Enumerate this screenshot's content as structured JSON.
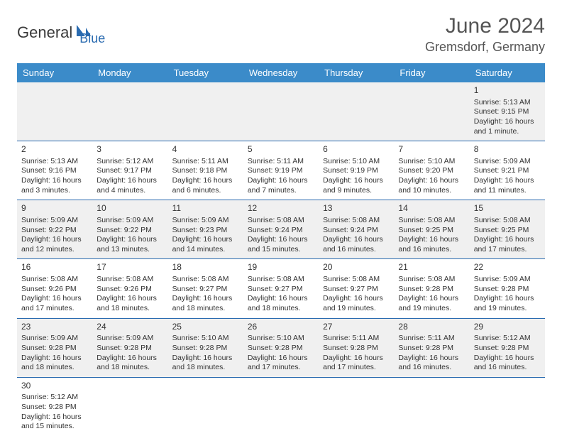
{
  "logo": {
    "general": "General",
    "blue": "Blue"
  },
  "title": "June 2024",
  "location": "Gremsdorf, Germany",
  "colors": {
    "header_bg": "#3b8bc9",
    "header_text": "#ffffff",
    "row_alt_bg": "#f0f0f0",
    "row_bg": "#ffffff",
    "border": "#2a6bb0",
    "text": "#333333",
    "logo_blue": "#2a6bb0",
    "logo_gray": "#3a3a3a"
  },
  "day_headers": [
    "Sunday",
    "Monday",
    "Tuesday",
    "Wednesday",
    "Thursday",
    "Friday",
    "Saturday"
  ],
  "weeks": [
    [
      null,
      null,
      null,
      null,
      null,
      null,
      {
        "n": "1",
        "sr": "Sunrise: 5:13 AM",
        "ss": "Sunset: 9:15 PM",
        "dl": "Daylight: 16 hours and 1 minute."
      }
    ],
    [
      {
        "n": "2",
        "sr": "Sunrise: 5:13 AM",
        "ss": "Sunset: 9:16 PM",
        "dl": "Daylight: 16 hours and 3 minutes."
      },
      {
        "n": "3",
        "sr": "Sunrise: 5:12 AM",
        "ss": "Sunset: 9:17 PM",
        "dl": "Daylight: 16 hours and 4 minutes."
      },
      {
        "n": "4",
        "sr": "Sunrise: 5:11 AM",
        "ss": "Sunset: 9:18 PM",
        "dl": "Daylight: 16 hours and 6 minutes."
      },
      {
        "n": "5",
        "sr": "Sunrise: 5:11 AM",
        "ss": "Sunset: 9:19 PM",
        "dl": "Daylight: 16 hours and 7 minutes."
      },
      {
        "n": "6",
        "sr": "Sunrise: 5:10 AM",
        "ss": "Sunset: 9:19 PM",
        "dl": "Daylight: 16 hours and 9 minutes."
      },
      {
        "n": "7",
        "sr": "Sunrise: 5:10 AM",
        "ss": "Sunset: 9:20 PM",
        "dl": "Daylight: 16 hours and 10 minutes."
      },
      {
        "n": "8",
        "sr": "Sunrise: 5:09 AM",
        "ss": "Sunset: 9:21 PM",
        "dl": "Daylight: 16 hours and 11 minutes."
      }
    ],
    [
      {
        "n": "9",
        "sr": "Sunrise: 5:09 AM",
        "ss": "Sunset: 9:22 PM",
        "dl": "Daylight: 16 hours and 12 minutes."
      },
      {
        "n": "10",
        "sr": "Sunrise: 5:09 AM",
        "ss": "Sunset: 9:22 PM",
        "dl": "Daylight: 16 hours and 13 minutes."
      },
      {
        "n": "11",
        "sr": "Sunrise: 5:09 AM",
        "ss": "Sunset: 9:23 PM",
        "dl": "Daylight: 16 hours and 14 minutes."
      },
      {
        "n": "12",
        "sr": "Sunrise: 5:08 AM",
        "ss": "Sunset: 9:24 PM",
        "dl": "Daylight: 16 hours and 15 minutes."
      },
      {
        "n": "13",
        "sr": "Sunrise: 5:08 AM",
        "ss": "Sunset: 9:24 PM",
        "dl": "Daylight: 16 hours and 16 minutes."
      },
      {
        "n": "14",
        "sr": "Sunrise: 5:08 AM",
        "ss": "Sunset: 9:25 PM",
        "dl": "Daylight: 16 hours and 16 minutes."
      },
      {
        "n": "15",
        "sr": "Sunrise: 5:08 AM",
        "ss": "Sunset: 9:25 PM",
        "dl": "Daylight: 16 hours and 17 minutes."
      }
    ],
    [
      {
        "n": "16",
        "sr": "Sunrise: 5:08 AM",
        "ss": "Sunset: 9:26 PM",
        "dl": "Daylight: 16 hours and 17 minutes."
      },
      {
        "n": "17",
        "sr": "Sunrise: 5:08 AM",
        "ss": "Sunset: 9:26 PM",
        "dl": "Daylight: 16 hours and 18 minutes."
      },
      {
        "n": "18",
        "sr": "Sunrise: 5:08 AM",
        "ss": "Sunset: 9:27 PM",
        "dl": "Daylight: 16 hours and 18 minutes."
      },
      {
        "n": "19",
        "sr": "Sunrise: 5:08 AM",
        "ss": "Sunset: 9:27 PM",
        "dl": "Daylight: 16 hours and 18 minutes."
      },
      {
        "n": "20",
        "sr": "Sunrise: 5:08 AM",
        "ss": "Sunset: 9:27 PM",
        "dl": "Daylight: 16 hours and 19 minutes."
      },
      {
        "n": "21",
        "sr": "Sunrise: 5:08 AM",
        "ss": "Sunset: 9:28 PM",
        "dl": "Daylight: 16 hours and 19 minutes."
      },
      {
        "n": "22",
        "sr": "Sunrise: 5:09 AM",
        "ss": "Sunset: 9:28 PM",
        "dl": "Daylight: 16 hours and 19 minutes."
      }
    ],
    [
      {
        "n": "23",
        "sr": "Sunrise: 5:09 AM",
        "ss": "Sunset: 9:28 PM",
        "dl": "Daylight: 16 hours and 18 minutes."
      },
      {
        "n": "24",
        "sr": "Sunrise: 5:09 AM",
        "ss": "Sunset: 9:28 PM",
        "dl": "Daylight: 16 hours and 18 minutes."
      },
      {
        "n": "25",
        "sr": "Sunrise: 5:10 AM",
        "ss": "Sunset: 9:28 PM",
        "dl": "Daylight: 16 hours and 18 minutes."
      },
      {
        "n": "26",
        "sr": "Sunrise: 5:10 AM",
        "ss": "Sunset: 9:28 PM",
        "dl": "Daylight: 16 hours and 17 minutes."
      },
      {
        "n": "27",
        "sr": "Sunrise: 5:11 AM",
        "ss": "Sunset: 9:28 PM",
        "dl": "Daylight: 16 hours and 17 minutes."
      },
      {
        "n": "28",
        "sr": "Sunrise: 5:11 AM",
        "ss": "Sunset: 9:28 PM",
        "dl": "Daylight: 16 hours and 16 minutes."
      },
      {
        "n": "29",
        "sr": "Sunrise: 5:12 AM",
        "ss": "Sunset: 9:28 PM",
        "dl": "Daylight: 16 hours and 16 minutes."
      }
    ],
    [
      {
        "n": "30",
        "sr": "Sunrise: 5:12 AM",
        "ss": "Sunset: 9:28 PM",
        "dl": "Daylight: 16 hours and 15 minutes."
      },
      null,
      null,
      null,
      null,
      null,
      null
    ]
  ]
}
